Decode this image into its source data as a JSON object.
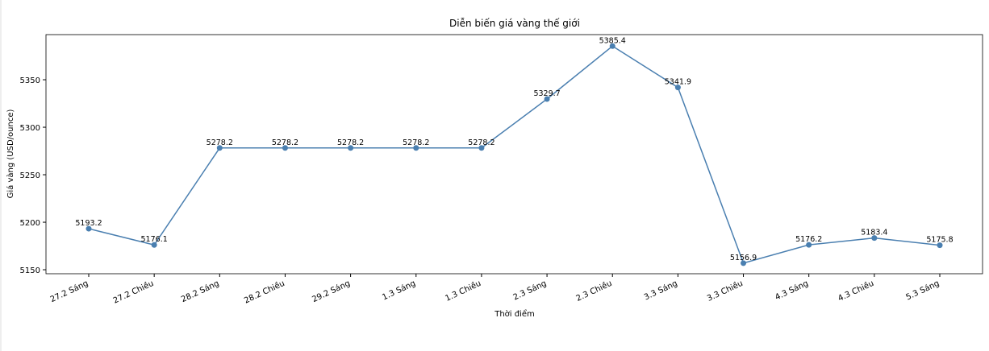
{
  "chart_data": {
    "type": "line",
    "title": "Diễn biến giá vàng thế giới",
    "x_label": "Thời điểm",
    "y_label": "Giá vàng (USD/ounce)",
    "categories": [
      "27.2 Sáng",
      "27.2 Chiều",
      "28.2 Sáng",
      "28.2 Chiều",
      "29.2 Sáng",
      "1.3 Sáng",
      "1.3 Chiều",
      "2.3 Sáng",
      "2.3 Chiều",
      "3.3 Sáng",
      "3.3 Chiều",
      "4.3 Sáng",
      "4.3 Chiều",
      "5.3 Sáng"
    ],
    "values": [
      5193.2,
      5176.1,
      5278.2,
      5278.2,
      5278.2,
      5278.2,
      5278.2,
      5329.7,
      5385.4,
      5341.9,
      5156.9,
      5176.2,
      5183.4,
      5175.8
    ],
    "color": "#4a7fb0",
    "ylim": [
      5145.8,
      5397.5
    ],
    "yticks": [
      5150,
      5200,
      5250,
      5300,
      5350
    ]
  }
}
